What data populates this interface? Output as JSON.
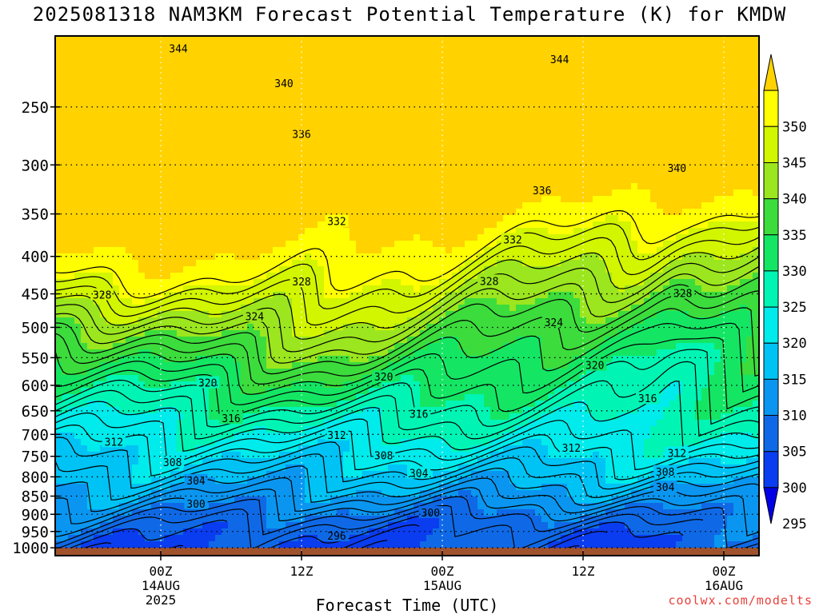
{
  "header": {
    "title": "2025081318 NAM3KM Forecast Potential Temperature (K) for KMDW"
  },
  "credit": "coolwx.com/modelts",
  "chart_data": {
    "type": "heatmap",
    "title": "2025081318 NAM3KM Forecast Potential Temperature (K) for KMDW",
    "xlabel": "Forecast Time (UTC)",
    "ylabel": "",
    "x_range_hours": [
      -9,
      51
    ],
    "x_ticks": [
      {
        "hour": 0,
        "lines": [
          "00Z",
          "14AUG",
          "2025"
        ]
      },
      {
        "hour": 12,
        "lines": [
          "12Z"
        ]
      },
      {
        "hour": 24,
        "lines": [
          "00Z",
          "15AUG"
        ]
      },
      {
        "hour": 36,
        "lines": [
          "12Z"
        ]
      },
      {
        "hour": 48,
        "lines": [
          "00Z",
          "16AUG"
        ]
      }
    ],
    "y_scale": "log-pressure",
    "y_range_hpa": [
      200,
      1025
    ],
    "y_ticks": [
      250,
      300,
      350,
      400,
      450,
      500,
      550,
      600,
      650,
      700,
      750,
      800,
      850,
      900,
      950,
      1000
    ],
    "surface_hpa": 1000,
    "surface_color": "#a0522d",
    "grid": true,
    "color_scale": {
      "levels": [
        295,
        300,
        305,
        310,
        315,
        320,
        325,
        330,
        335,
        340,
        345,
        350
      ],
      "labels": [
        "295",
        "300",
        "305",
        "310",
        "315",
        "320",
        "325",
        "330",
        "335",
        "340",
        "345",
        "350"
      ],
      "colors": [
        "#0000e6",
        "#0a3cf0",
        "#0f69e6",
        "#0a96f0",
        "#00c3f5",
        "#00ebeb",
        "#00f5b4",
        "#14e664",
        "#3cdc3c",
        "#9be61e",
        "#d2f500",
        "#ffff00",
        "#ffd200"
      ]
    },
    "contour_levels": [
      296,
      298,
      300,
      302,
      304,
      306,
      308,
      310,
      312,
      314,
      316,
      318,
      320,
      322,
      324,
      326,
      328,
      330,
      332,
      334,
      336,
      338,
      340,
      342,
      344,
      346
    ],
    "contour_labels": [
      {
        "value": "344",
        "hour": 1.5,
        "hpa": 208
      },
      {
        "value": "344",
        "hour": 34.0,
        "hpa": 215
      },
      {
        "value": "340",
        "hour": 10.5,
        "hpa": 232
      },
      {
        "value": "336",
        "hour": 12.0,
        "hpa": 272
      },
      {
        "value": "336",
        "hour": 32.5,
        "hpa": 325
      },
      {
        "value": "340",
        "hour": 44.0,
        "hpa": 303
      },
      {
        "value": "332",
        "hour": 15.0,
        "hpa": 358
      },
      {
        "value": "332",
        "hour": 30.0,
        "hpa": 379
      },
      {
        "value": "328",
        "hour": -5.0,
        "hpa": 451
      },
      {
        "value": "328",
        "hour": 12.0,
        "hpa": 433
      },
      {
        "value": "328",
        "hour": 28.0,
        "hpa": 432
      },
      {
        "value": "328",
        "hour": 44.5,
        "hpa": 449
      },
      {
        "value": "324",
        "hour": 8.0,
        "hpa": 483
      },
      {
        "value": "324",
        "hour": 33.5,
        "hpa": 492
      },
      {
        "value": "320",
        "hour": 37.0,
        "hpa": 563
      },
      {
        "value": "320",
        "hour": 4.0,
        "hpa": 595
      },
      {
        "value": "320",
        "hour": 19.0,
        "hpa": 584
      },
      {
        "value": "316",
        "hour": 41.5,
        "hpa": 625
      },
      {
        "value": "316",
        "hour": 22.0,
        "hpa": 656
      },
      {
        "value": "316",
        "hour": 6.0,
        "hpa": 665
      },
      {
        "value": "312",
        "hour": 15.0,
        "hpa": 701
      },
      {
        "value": "312",
        "hour": -4.0,
        "hpa": 716
      },
      {
        "value": "312",
        "hour": 35.0,
        "hpa": 730
      },
      {
        "value": "312",
        "hour": 44.0,
        "hpa": 742
      },
      {
        "value": "308",
        "hour": 19.0,
        "hpa": 748
      },
      {
        "value": "308",
        "hour": 1.0,
        "hpa": 764
      },
      {
        "value": "308",
        "hour": 43.0,
        "hpa": 787
      },
      {
        "value": "304",
        "hour": 22.0,
        "hpa": 790
      },
      {
        "value": "304",
        "hour": 3.0,
        "hpa": 809
      },
      {
        "value": "304",
        "hour": 43.0,
        "hpa": 826
      },
      {
        "value": "300",
        "hour": 3.0,
        "hpa": 870
      },
      {
        "value": "300",
        "hour": 23.0,
        "hpa": 895
      },
      {
        "value": "296",
        "hour": 15.0,
        "hpa": 963
      }
    ]
  }
}
